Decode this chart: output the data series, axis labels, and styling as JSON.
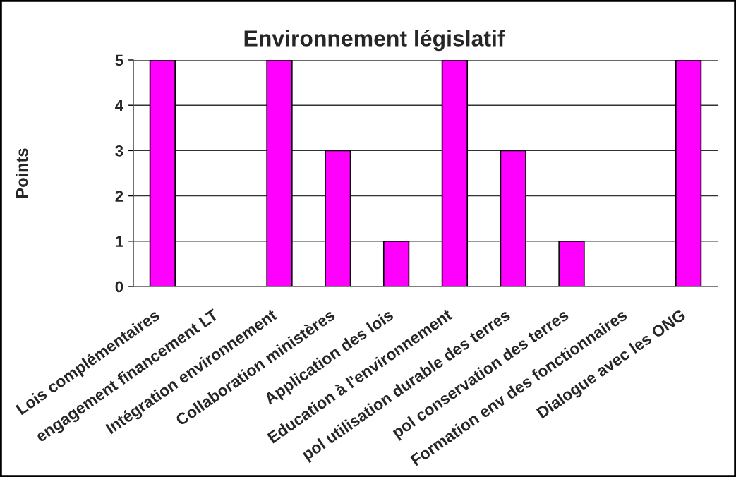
{
  "chart_data": {
    "type": "bar",
    "title": "Environnement législatif",
    "ylabel": "Points",
    "categories": [
      "Lois complémentaires",
      "engagement financement LT",
      "Intégration environnement",
      "Collaboration ministères",
      "Application des lois",
      "Education à l'environnement",
      "pol utilisation durable des terres",
      "pol conservation des terres",
      "Formation env des fonctionnaires",
      "Dialogue avec les ONG"
    ],
    "values": [
      5,
      0,
      5,
      3,
      1,
      5,
      3,
      1,
      0,
      5
    ],
    "color": "#ff00ff",
    "ylim": [
      0,
      5
    ],
    "yticks": [
      0,
      1,
      2,
      3,
      4,
      5
    ],
    "grid": "y",
    "legend": false
  }
}
